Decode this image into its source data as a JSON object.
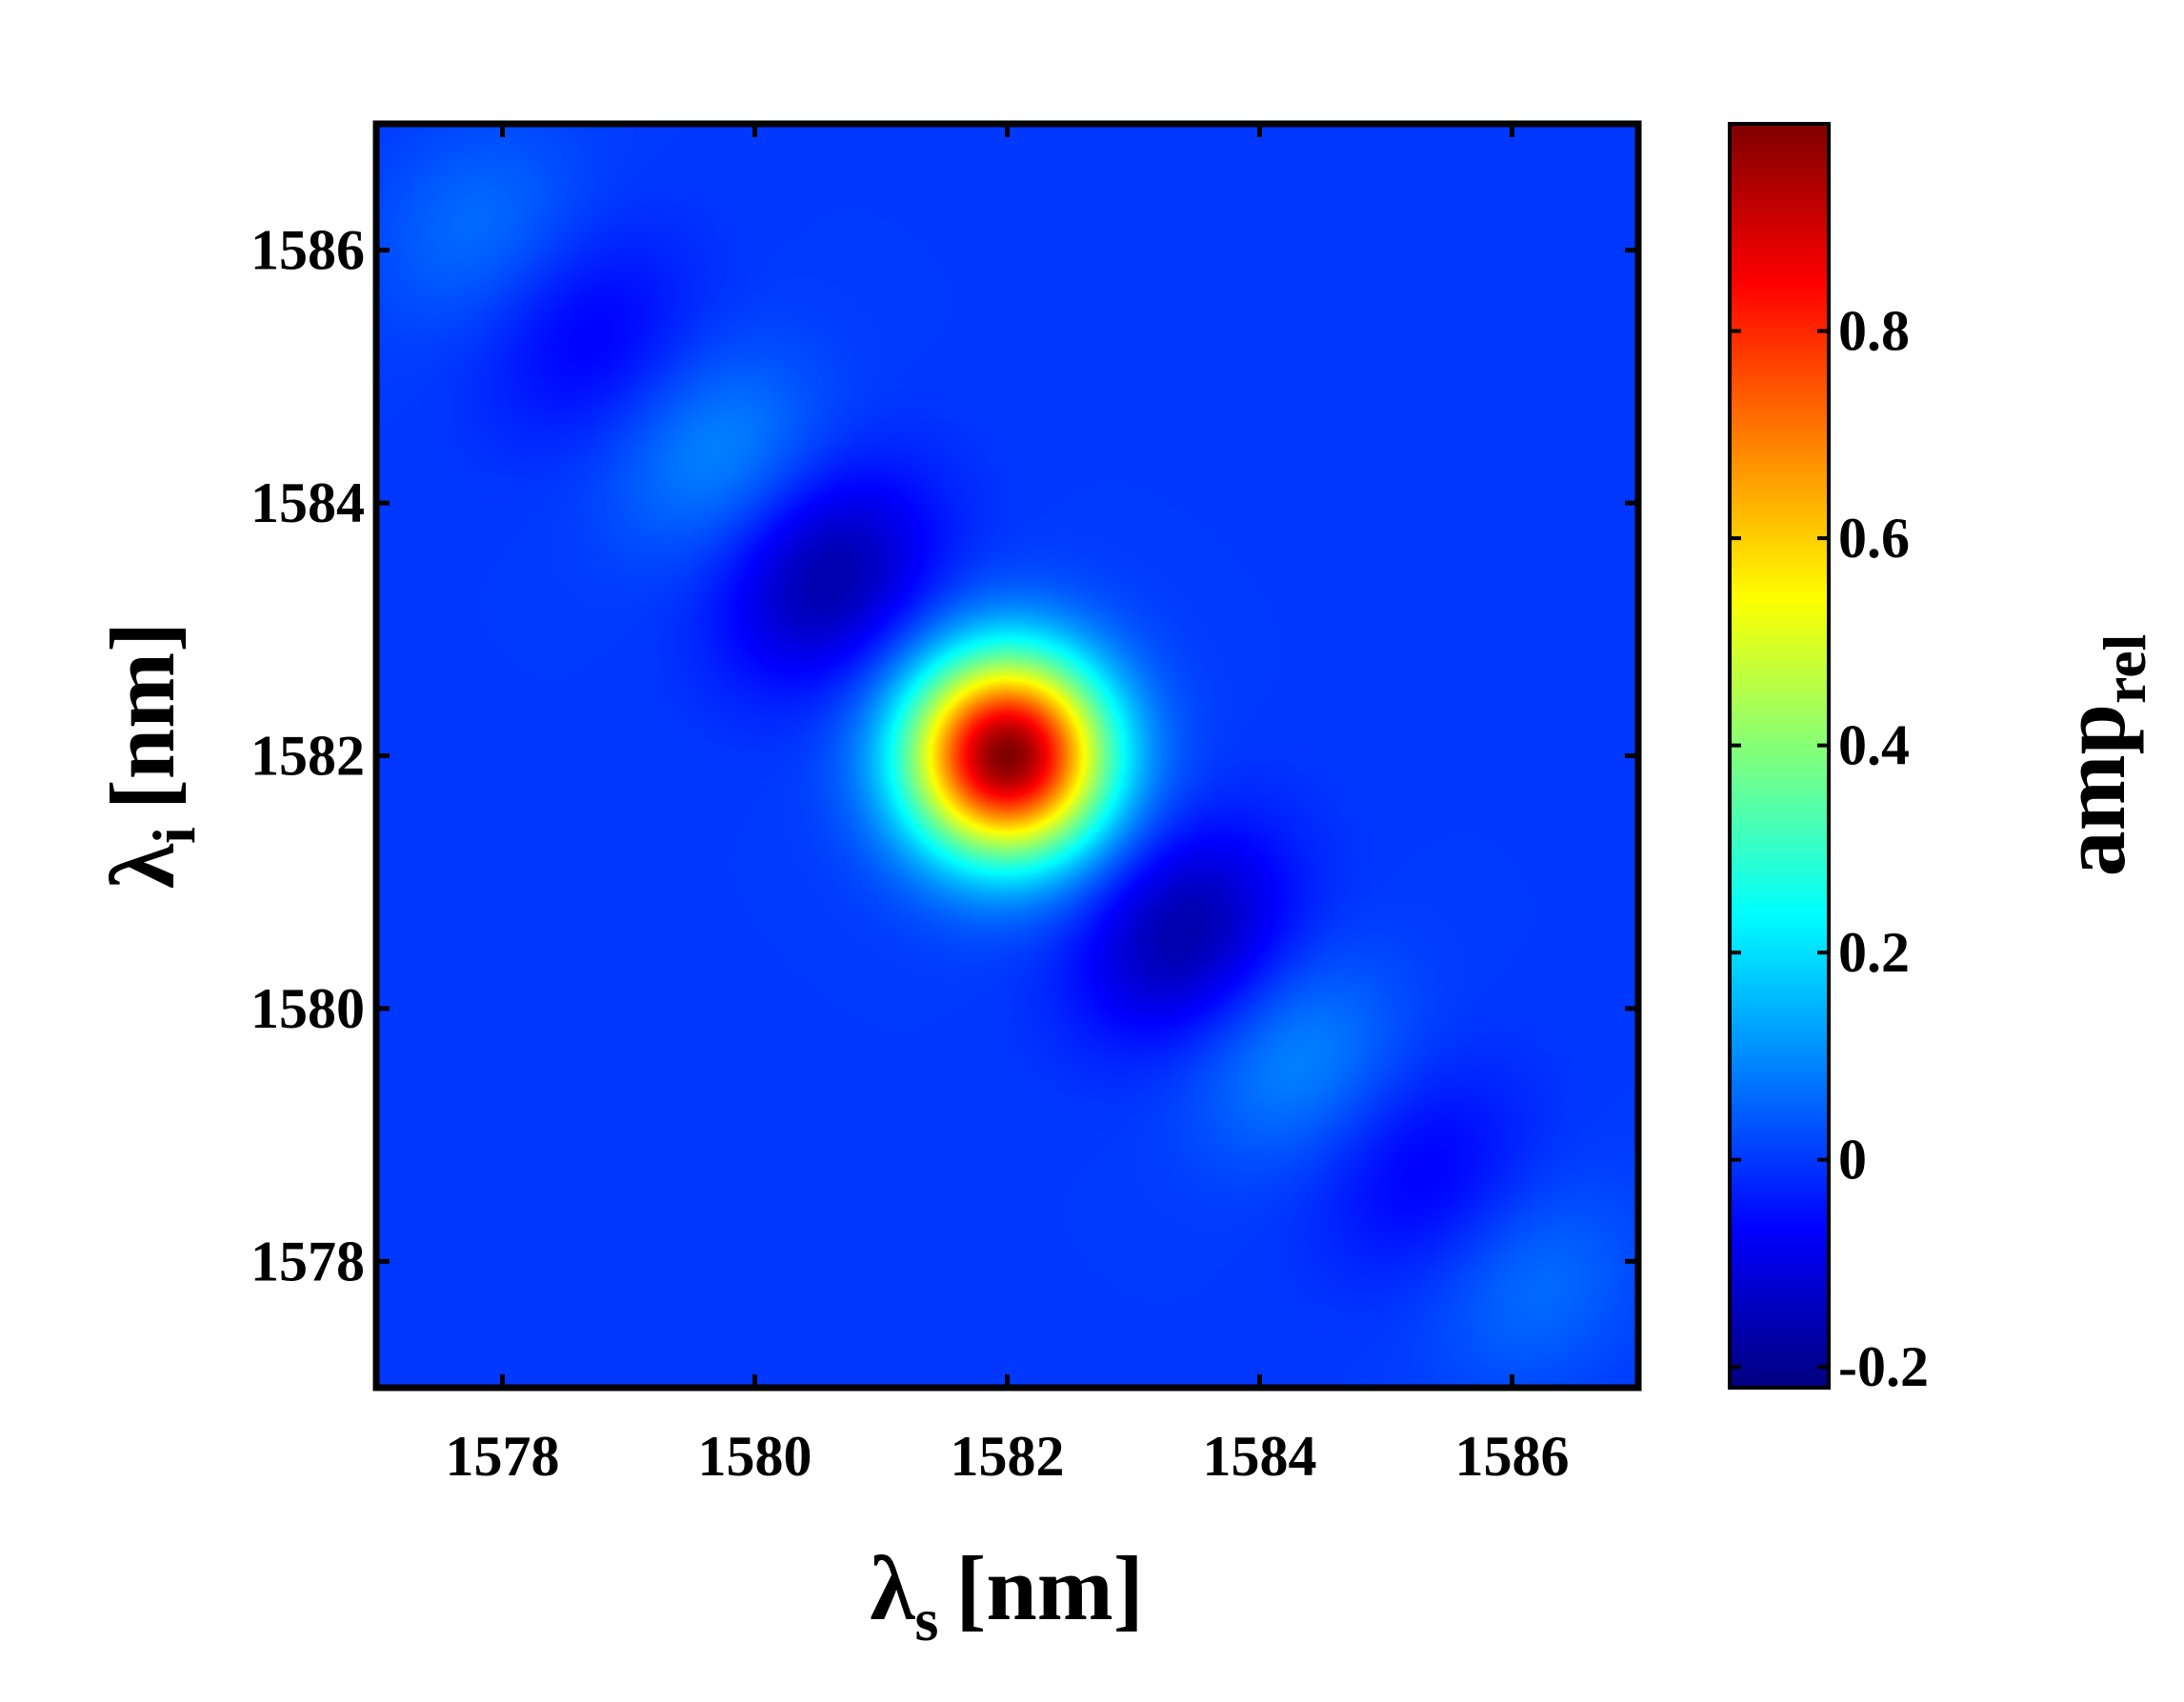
{
  "chart_data": {
    "type": "heatmap",
    "title": "",
    "xlabel": {
      "symbol": "λ",
      "subscript": "s",
      "unit": "[nm]"
    },
    "ylabel": {
      "symbol": "λ",
      "subscript": "i",
      "unit": "[nm]"
    },
    "colorbar_label": {
      "text": "amp",
      "subscript": "rel"
    },
    "xlim": [
      1577,
      1587
    ],
    "ylim": [
      1577,
      1587
    ],
    "x_ticks": [
      1578,
      1580,
      1582,
      1584,
      1586
    ],
    "y_ticks": [
      1578,
      1580,
      1582,
      1584,
      1586
    ],
    "x_tick_labels": [
      "1578",
      "1580",
      "1582",
      "1584",
      "1586"
    ],
    "y_tick_labels": [
      "1578",
      "1580",
      "1582",
      "1584",
      "1586"
    ],
    "colorbar_range": [
      -0.22,
      1.0
    ],
    "colorbar_ticks": [
      -0.2,
      0,
      0.2,
      0.4,
      0.6,
      0.8
    ],
    "colorbar_tick_labels": [
      "-0.2",
      "0",
      "0.2",
      "0.4",
      "0.6",
      "0.8"
    ],
    "colormap": "jet",
    "grid": false,
    "peak": {
      "x": 1582,
      "y": 1582,
      "value": 1.0
    },
    "lobes": [
      {
        "x": 1577.8,
        "y": 1586.2,
        "value": 0.06
      },
      {
        "x": 1578.7,
        "y": 1585.3,
        "value": -0.07
      },
      {
        "x": 1579.7,
        "y": 1584.4,
        "value": 0.09
      },
      {
        "x": 1580.6,
        "y": 1583.4,
        "value": -0.17
      },
      {
        "x": 1583.4,
        "y": 1580.6,
        "value": -0.17
      },
      {
        "x": 1584.3,
        "y": 1579.6,
        "value": 0.09
      },
      {
        "x": 1585.3,
        "y": 1578.7,
        "value": -0.07
      },
      {
        "x": 1586.2,
        "y": 1577.8,
        "value": 0.06
      }
    ]
  }
}
